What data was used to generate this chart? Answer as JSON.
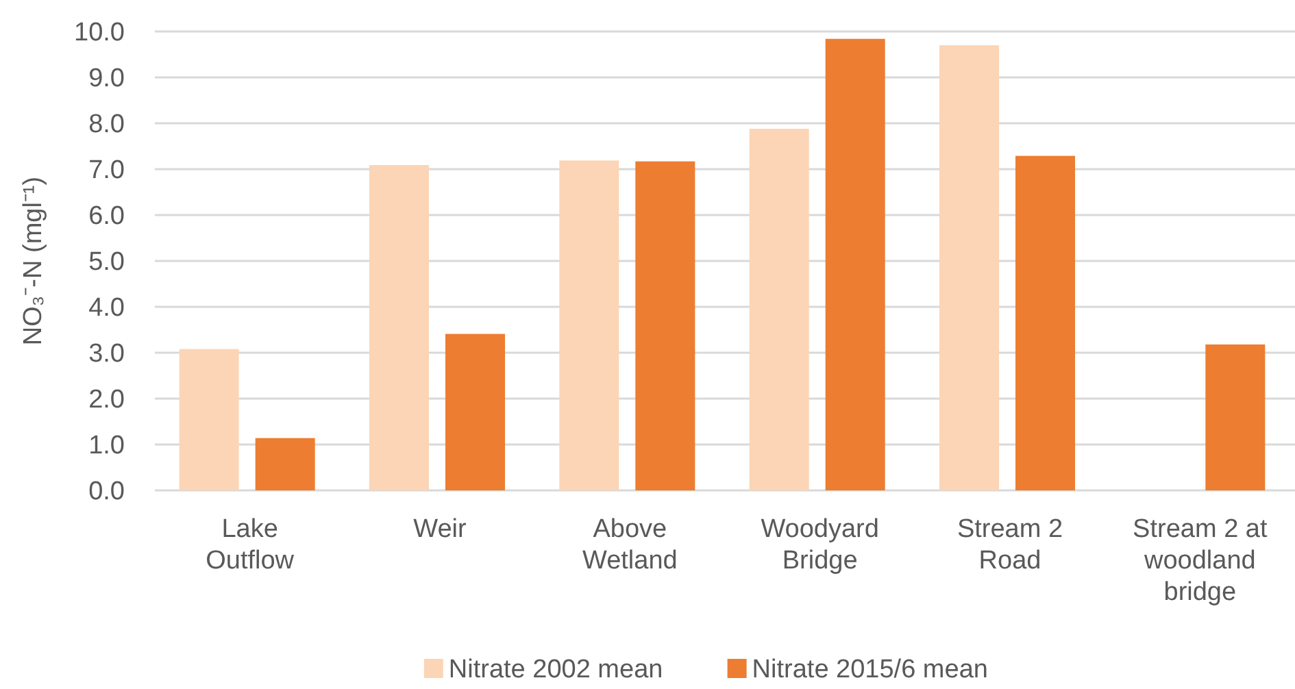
{
  "chart_data": {
    "type": "bar",
    "ylabel": "NO₃⁻-N (mgl⁻¹)",
    "categories": [
      "Lake Outflow",
      "Weir",
      "Above Wetland",
      "Woodyard Bridge",
      "Stream 2 Road",
      "Stream 2 at woodland bridge"
    ],
    "series": [
      {
        "name": "Nitrate 2002 mean",
        "color": "#fbd5b5",
        "values": [
          3.08,
          7.09,
          7.19,
          7.88,
          9.7,
          null
        ]
      },
      {
        "name": "Nitrate 2015/6 mean",
        "color": "#ed7d31",
        "values": [
          1.14,
          3.41,
          7.17,
          9.84,
          7.29,
          3.18
        ]
      }
    ],
    "ylim": [
      0,
      10
    ],
    "yticks": [
      {
        "value": 0,
        "label": "0.0"
      },
      {
        "value": 1,
        "label": "1.0"
      },
      {
        "value": 2,
        "label": "2.0"
      },
      {
        "value": 3,
        "label": "3.0"
      },
      {
        "value": 4,
        "label": "4.0"
      },
      {
        "value": 5,
        "label": "5.0"
      },
      {
        "value": 6,
        "label": "6.0"
      },
      {
        "value": 7,
        "label": "7.0"
      },
      {
        "value": 8,
        "label": "8.0"
      },
      {
        "value": 9,
        "label": "9.0"
      },
      {
        "value": 10,
        "label": "10.0"
      }
    ],
    "grid": "y",
    "legend": "bottom"
  }
}
